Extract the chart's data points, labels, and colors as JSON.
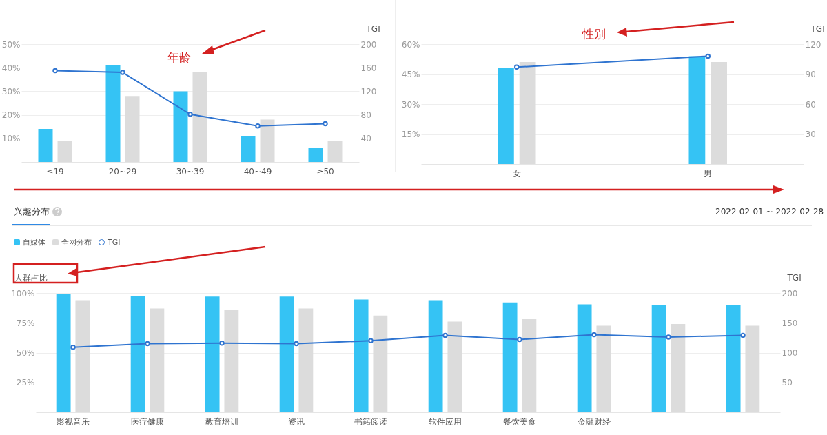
{
  "chart_data": [
    {
      "type": "bar",
      "categories": [
        "≤19",
        "20~29",
        "30~39",
        "40~49",
        "≥50"
      ],
      "y2label": "TGI",
      "annotations": [
        "年龄"
      ],
      "ylim": [
        0,
        50
      ],
      "yticks": [
        {
          "value": 10,
          "label": "10%"
        },
        {
          "value": 20,
          "label": "20%"
        },
        {
          "value": 30,
          "label": "30%"
        },
        {
          "value": 40,
          "label": "40%"
        },
        {
          "value": 50,
          "label": "50%"
        }
      ],
      "y2lim": [
        0,
        200
      ],
      "y2ticks": [
        40,
        80,
        120,
        160,
        200
      ],
      "grid": "y",
      "marker": "circle",
      "series": [
        {
          "color": "#35c3f4",
          "values": [
            14,
            41,
            30,
            11,
            6
          ]
        },
        {
          "color": "#dcdcdc",
          "values": [
            9,
            28,
            38,
            18,
            9
          ]
        },
        {
          "type": "line",
          "axis": "y2",
          "color": "#2f74d0",
          "values": [
            155,
            152,
            81,
            61,
            65
          ]
        }
      ]
    },
    {
      "type": "bar",
      "categories": [
        "女",
        "男"
      ],
      "y2label": "TGI",
      "annotations": [
        "性别"
      ],
      "ylim": [
        0,
        60
      ],
      "yticks": [
        {
          "value": 15,
          "label": "15%"
        },
        {
          "value": 30,
          "label": "30%"
        },
        {
          "value": 45,
          "label": "45%"
        },
        {
          "value": 60,
          "label": "60%"
        }
      ],
      "y2lim": [
        0,
        120
      ],
      "y2ticks": [
        30,
        60,
        90,
        120
      ],
      "grid": "y",
      "marker": "circle",
      "series": [
        {
          "color": "#35c3f4",
          "values": [
            48,
            54
          ]
        },
        {
          "color": "#dcdcdc",
          "values": [
            51,
            51
          ]
        },
        {
          "type": "line",
          "axis": "y2",
          "color": "#2f74d0",
          "values": [
            97,
            108
          ]
        }
      ]
    },
    {
      "type": "bar",
      "title": "兴趣分布",
      "annotations": [
        "2022-02-01 ~ 2022-02-28"
      ],
      "ylabel": "人群占比",
      "y2label": "TGI",
      "legend": "top left",
      "categories": [
        "影视音乐",
        "医疗健康",
        "教育培训",
        "资讯",
        "书籍阅读",
        "软件应用",
        "餐饮美食",
        "金融财经",
        null,
        null
      ],
      "ylim": [
        0,
        100
      ],
      "yticks": [
        {
          "value": 25,
          "label": "25%"
        },
        {
          "value": 50,
          "label": "50%"
        },
        {
          "value": 75,
          "label": "75%"
        },
        {
          "value": 100,
          "label": "100%"
        }
      ],
      "y2lim": [
        0,
        200
      ],
      "y2ticks": [
        50,
        100,
        150,
        200
      ],
      "grid": "y",
      "marker": "circle",
      "series": [
        {
          "name": "自媒体",
          "color": "#35c3f4",
          "values": [
            99,
            97.5,
            97,
            97,
            94.5,
            94,
            92,
            90.5,
            90,
            90
          ]
        },
        {
          "name": "全网分布",
          "color": "#dcdcdc",
          "values": [
            94,
            87,
            86,
            87,
            81,
            76,
            78,
            72.5,
            74,
            72.5
          ]
        },
        {
          "name": "TGI",
          "type": "line",
          "axis": "y2",
          "color": "#2f74d0",
          "values": [
            109,
            115,
            116,
            115,
            120,
            129,
            122,
            130,
            126,
            129
          ]
        }
      ]
    }
  ]
}
